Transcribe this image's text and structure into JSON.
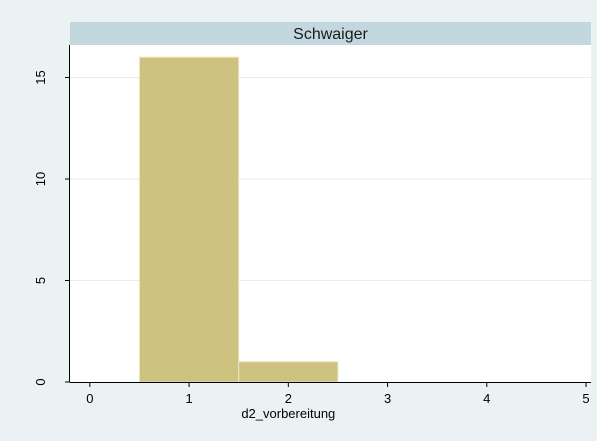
{
  "chart_data": {
    "type": "bar",
    "title": "Schwaiger",
    "xlabel": "d2_vorbereitung",
    "ylabel": "",
    "xlim": [
      -0.2,
      5.05
    ],
    "ylim": [
      0,
      16.6
    ],
    "xticks": [
      0,
      1,
      2,
      3,
      4,
      5
    ],
    "yticks": [
      0,
      5,
      10,
      15
    ],
    "bins": [
      {
        "x0": 0.5,
        "x1": 1.5,
        "value": 16
      },
      {
        "x0": 1.5,
        "x1": 2.5,
        "value": 1
      }
    ],
    "grid": true,
    "colors": {
      "bar_fill": "#cdc27f",
      "bar_stroke": "#ece6c2",
      "title_band": "#c3d7df",
      "plot_bg": "#ffffff",
      "outer_bg": "#eaf2f3",
      "grid": "#e6ecee"
    }
  }
}
